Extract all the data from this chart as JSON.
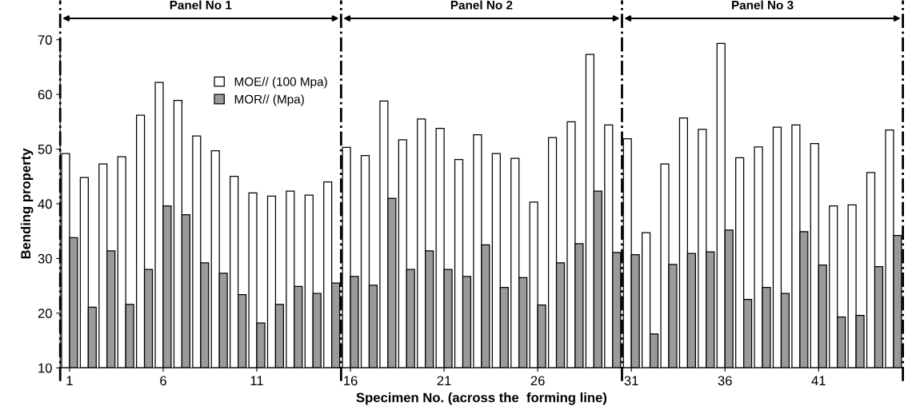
{
  "chart_data": {
    "type": "bar",
    "xlabel": "Specimen No. (across the  forming line)",
    "ylabel": "Bending property",
    "x": [
      1,
      2,
      3,
      4,
      5,
      6,
      7,
      8,
      9,
      10,
      11,
      12,
      13,
      14,
      15,
      16,
      17,
      18,
      19,
      20,
      21,
      22,
      23,
      24,
      25,
      26,
      27,
      28,
      29,
      30,
      31,
      32,
      33,
      34,
      35,
      36,
      37,
      38,
      39,
      40,
      41,
      42,
      43,
      44,
      45
    ],
    "xlim": [
      0.5,
      45.5
    ],
    "xticks": [
      1,
      6,
      11,
      16,
      21,
      26,
      31,
      36,
      41
    ],
    "ylim": [
      10,
      70
    ],
    "yticks": [
      10,
      20,
      30,
      40,
      50,
      60,
      70
    ],
    "series": [
      {
        "name": "MOE// (100 Mpa)",
        "color": "#ffffff",
        "values": [
          49.2,
          44.8,
          47.3,
          48.6,
          56.2,
          62.2,
          58.9,
          52.4,
          49.7,
          45.0,
          42.0,
          41.4,
          42.3,
          41.6,
          44.0,
          50.3,
          48.8,
          58.8,
          51.7,
          55.5,
          53.8,
          48.1,
          52.6,
          49.2,
          48.3,
          40.3,
          52.1,
          55.0,
          67.3,
          54.4,
          51.9,
          34.7,
          47.3,
          55.7,
          53.6,
          69.3,
          48.4,
          50.4,
          54.0,
          54.4,
          51.0,
          39.6,
          39.8,
          45.7,
          53.5
        ]
      },
      {
        "name": "MOR// (Mpa)",
        "color": "#9a9a9a",
        "values": [
          33.8,
          21.1,
          31.4,
          21.6,
          28.0,
          39.6,
          38.0,
          29.2,
          27.3,
          23.4,
          18.2,
          21.6,
          24.9,
          23.6,
          25.5,
          26.7,
          25.1,
          41.0,
          28.0,
          31.4,
          28.0,
          26.7,
          32.5,
          24.7,
          26.5,
          21.5,
          29.2,
          32.7,
          42.3,
          31.1,
          30.7,
          16.2,
          28.9,
          30.9,
          31.2,
          35.2,
          22.5,
          24.7,
          23.6,
          34.9,
          28.8,
          19.3,
          19.6,
          28.5,
          34.2
        ]
      }
    ],
    "ref_lines": [
      {
        "axis": "x",
        "value": 0.5,
        "line_style": "dashdot"
      },
      {
        "axis": "x",
        "value": 15.5,
        "line_style": "dashdot"
      },
      {
        "axis": "x",
        "value": 30.5,
        "line_style": "dashdot"
      },
      {
        "axis": "x",
        "value": 45.5,
        "line_style": "dashdot"
      }
    ],
    "annotations": [
      "Panel No 1",
      "Panel No 2",
      "Panel No 3"
    ],
    "legend": "top left",
    "grid": false
  }
}
